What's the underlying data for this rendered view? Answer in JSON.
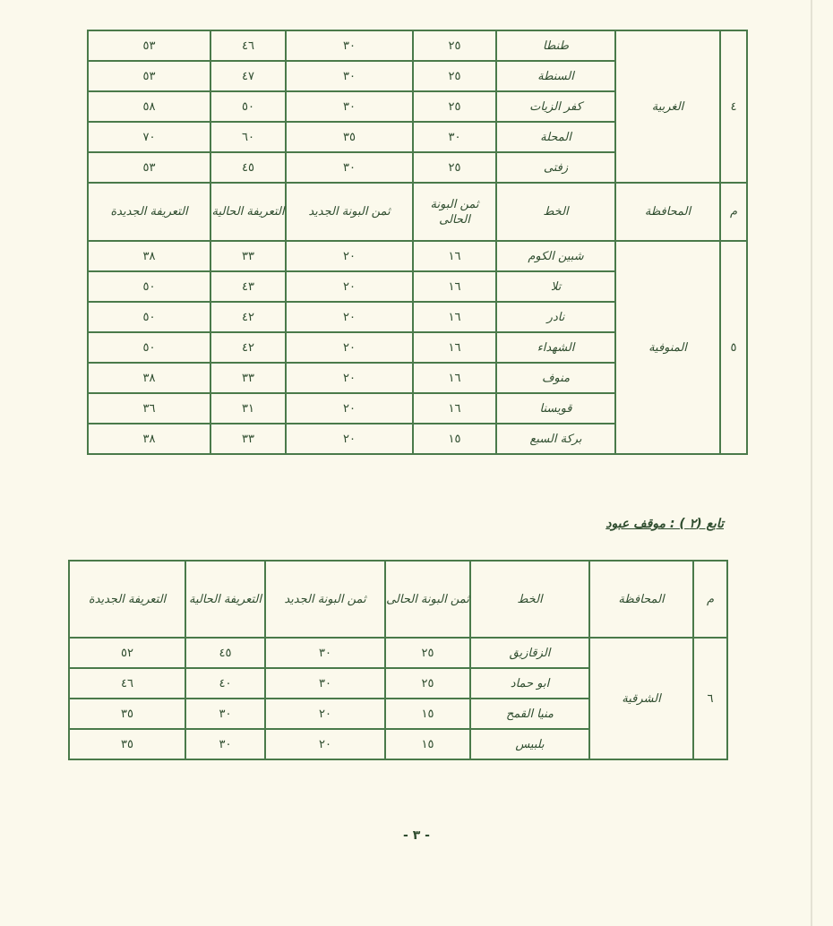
{
  "headers": [
    "م",
    "المحافظة",
    "الخط",
    "ثمن البونة الحالى",
    "ثمن البونة الجديد",
    "التعريفة الحالية",
    "التعريفة الجديدة"
  ],
  "table1": {
    "group_gharbia": {
      "m": "٤",
      "gov": "الغربية",
      "rows": [
        [
          "طنطا",
          "٢٥",
          "٣٠",
          "٤٦",
          "٥٣"
        ],
        [
          "السنطة",
          "٢٥",
          "٣٠",
          "٤٧",
          "٥٣"
        ],
        [
          "كفر الزيات",
          "٢٥",
          "٣٠",
          "٥٠",
          "٥٨"
        ],
        [
          "المحلة",
          "٣٠",
          "٣٥",
          "٦٠",
          "٧٠"
        ],
        [
          "زفتى",
          "٢٥",
          "٣٠",
          "٤٥",
          "٥٣"
        ]
      ]
    },
    "group_menofia": {
      "m": "٥",
      "gov": "المنوفية",
      "rows": [
        [
          "شبين الكوم",
          "١٦",
          "٢٠",
          "٣٣",
          "٣٨"
        ],
        [
          "تلا",
          "١٦",
          "٢٠",
          "٤٣",
          "٥٠"
        ],
        [
          "نادر",
          "١٦",
          "٢٠",
          "٤٢",
          "٥٠"
        ],
        [
          "الشهداء",
          "١٦",
          "٢٠",
          "٤٢",
          "٥٠"
        ],
        [
          "منوف",
          "١٦",
          "٢٠",
          "٣٣",
          "٣٨"
        ],
        [
          "قويسنا",
          "١٦",
          "٢٠",
          "٣١",
          "٣٦"
        ],
        [
          "بركة السبع",
          "١٥",
          "٢٠",
          "٣٣",
          "٣٨"
        ]
      ]
    }
  },
  "section_title": "تابع (٢ ) : موقف عبود",
  "table2": {
    "group_sharqia": {
      "m": "٦",
      "gov": "الشرقية",
      "rows": [
        [
          "الزقازيق",
          "٢٥",
          "٣٠",
          "٤٥",
          "٥٢"
        ],
        [
          "ابو حماد",
          "٢٥",
          "٣٠",
          "٤٠",
          "٤٦"
        ],
        [
          "منيا القمح",
          "١٥",
          "٢٠",
          "٣٠",
          "٣٥"
        ],
        [
          "بلبيس",
          "١٥",
          "٢٠",
          "٣٠",
          "٣٥"
        ]
      ]
    }
  },
  "page_number": "- ٣ -",
  "colors": {
    "ink": "#2f4d2f",
    "lines": "#4a7a4a",
    "paper": "#fbf9ec"
  }
}
